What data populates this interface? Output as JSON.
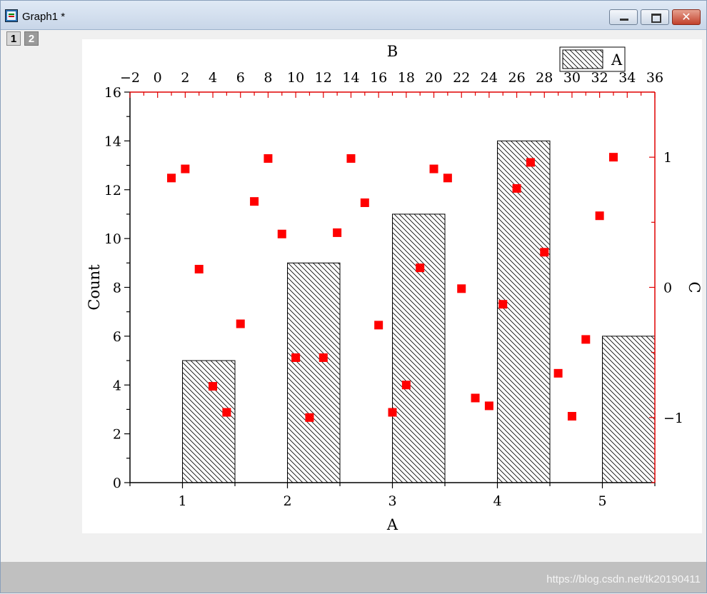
{
  "window": {
    "title": "Graph1 *",
    "layer_tabs": [
      "1",
      "2"
    ],
    "close_glyph": "✕"
  },
  "watermark": "https://blog.csdn.net/tk20190411",
  "colors": {
    "accent": "#e00000",
    "bar_stroke": "#000000",
    "scatter": "#ff0000"
  },
  "chart_data": {
    "type": "bar+scatter",
    "bar": {
      "xlabel": "A",
      "ylabel": "Count",
      "categories": [
        1,
        2,
        3,
        4,
        5
      ],
      "values": [
        5,
        9,
        11,
        14,
        6
      ],
      "xlim": [
        0.5,
        5.5
      ],
      "ylim": [
        0,
        16
      ],
      "x_ticks": [
        "1",
        "2",
        "3",
        "4",
        "5"
      ],
      "y_ticks": [
        "0",
        "2",
        "4",
        "6",
        "8",
        "10",
        "12",
        "14",
        "16"
      ],
      "legend": {
        "label": "A",
        "placement": "top-right"
      },
      "pattern": "diagonal-hatch"
    },
    "scatter": {
      "xlabel": "B",
      "ylabel": "C",
      "xlim": [
        -2,
        36
      ],
      "ylim": [
        -1.5,
        1.5
      ],
      "x_ticks": [
        "−2",
        "0",
        "2",
        "4",
        "6",
        "8",
        "10",
        "12",
        "14",
        "16",
        "18",
        "20",
        "22",
        "24",
        "26",
        "28",
        "30",
        "32",
        "34",
        "36"
      ],
      "y_ticks": [
        "−1",
        "0",
        "1"
      ],
      "x": [
        1,
        2,
        3,
        4,
        5,
        6,
        7,
        8,
        9,
        10,
        11,
        12,
        13,
        14,
        15,
        16,
        17,
        18,
        19,
        20,
        21,
        22,
        23,
        24,
        25,
        26,
        27,
        28,
        29,
        30,
        31,
        32,
        33
      ],
      "y": [
        0.84,
        0.91,
        0.14,
        -0.76,
        -0.96,
        -0.28,
        0.66,
        0.99,
        0.41,
        -0.54,
        -1.0,
        -0.54,
        0.42,
        0.99,
        0.65,
        -0.29,
        -0.96,
        -0.75,
        0.15,
        0.91,
        0.84,
        -0.01,
        -0.85,
        -0.91,
        -0.13,
        0.76,
        0.96,
        0.27,
        -0.66,
        -0.99,
        -0.4,
        0.55,
        1.0
      ]
    }
  }
}
